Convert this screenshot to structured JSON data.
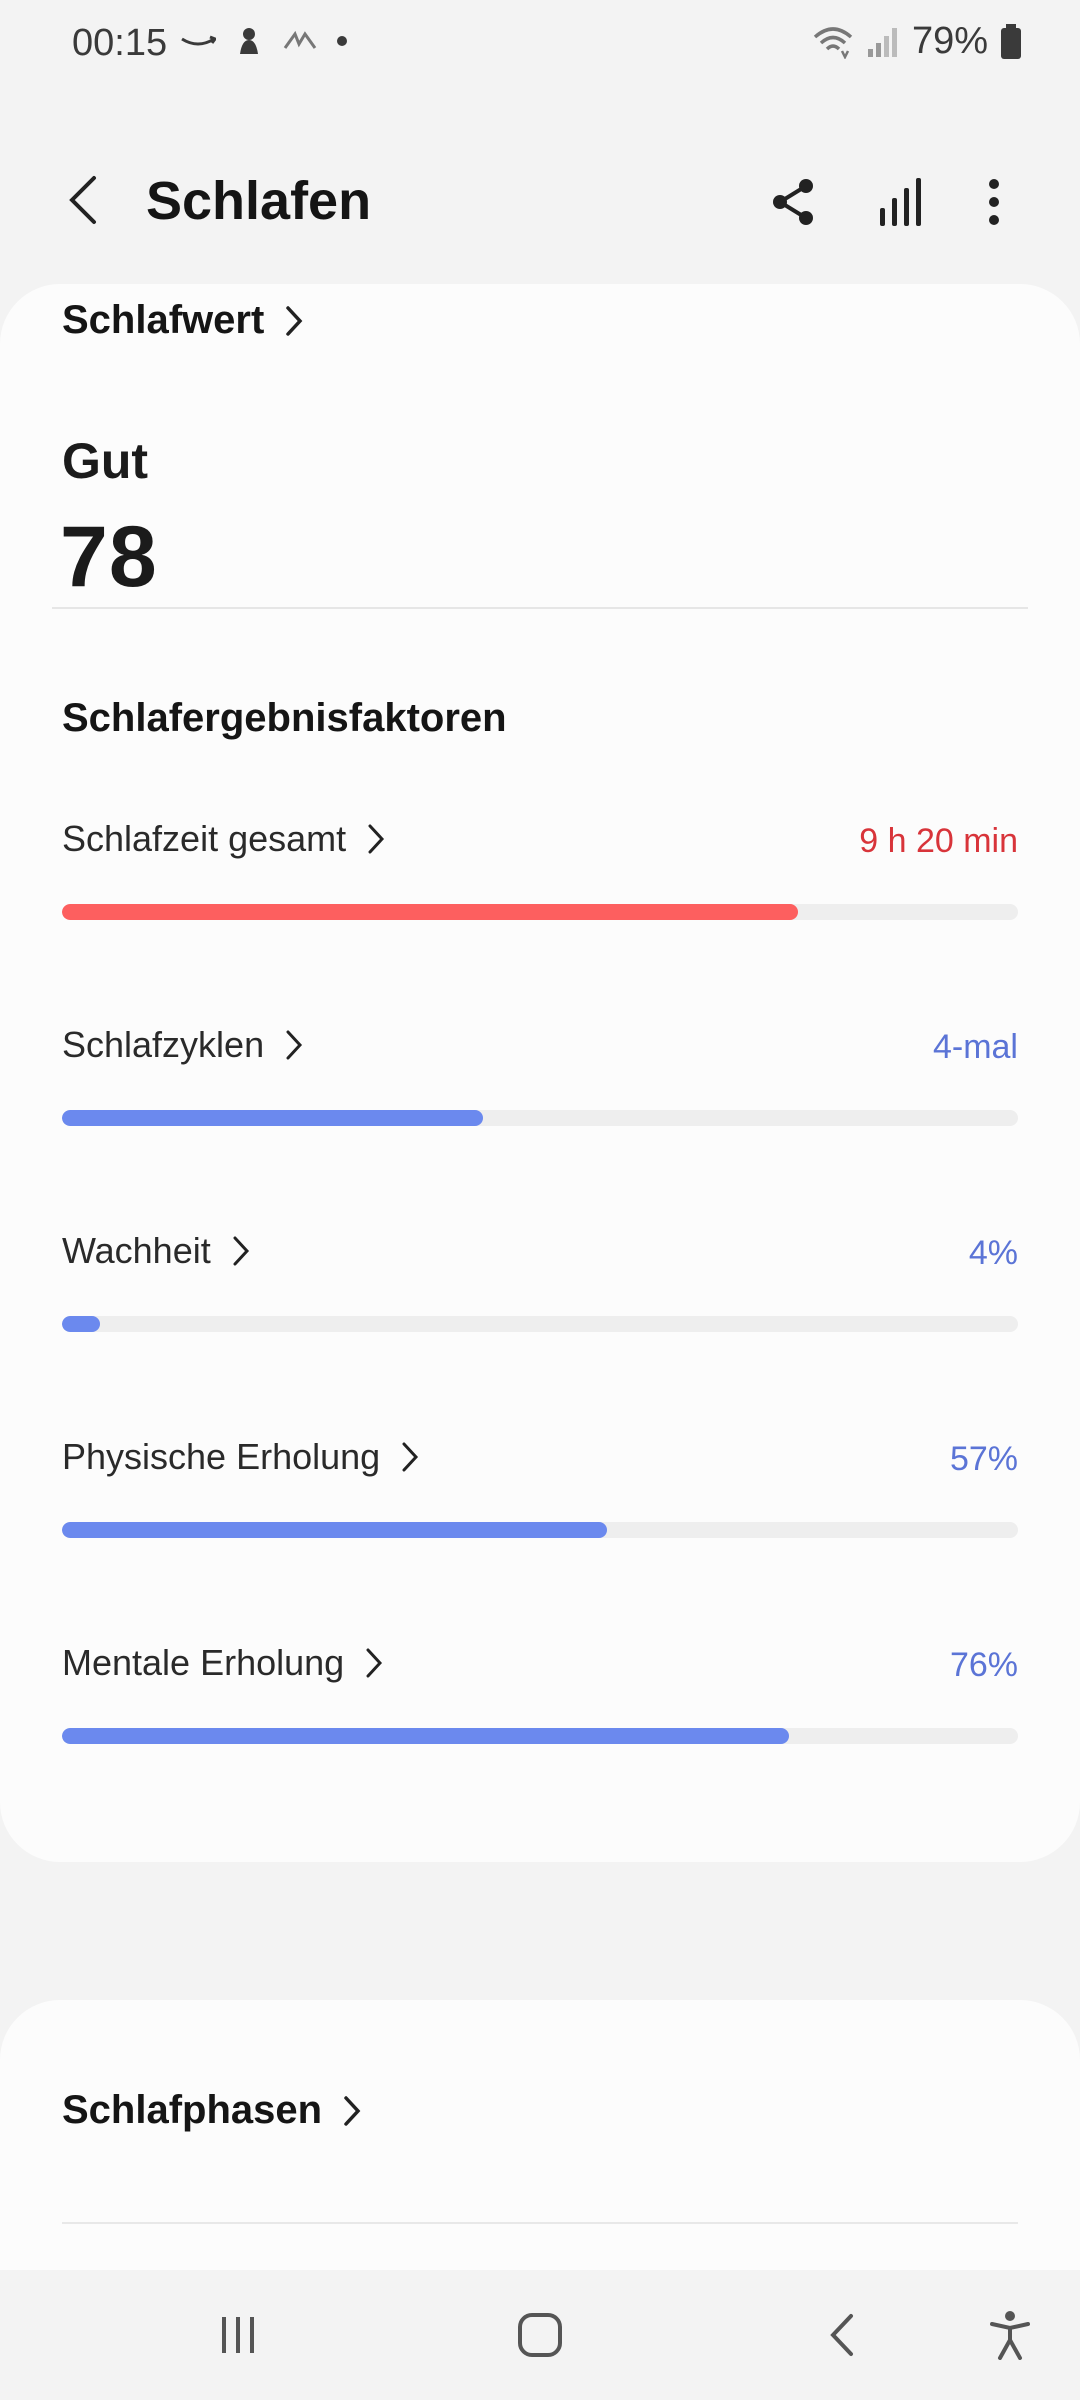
{
  "status_bar": {
    "time": "00:15",
    "battery": "79%"
  },
  "header": {
    "title": "Schlafen"
  },
  "score_card": {
    "link_label": "Schlafwert",
    "rating": "Gut",
    "score": "78",
    "factors_title": "Schlafergebnisfaktoren",
    "factors": [
      {
        "label": "Schlafzeit gesamt",
        "value": "9 h 20 min",
        "fraction": 0.77,
        "color": "#fd5f5f",
        "value_color": "#d8343a"
      },
      {
        "label": "Schlafzyklen",
        "value": "4-mal",
        "fraction": 0.44,
        "color": "#6b89ee",
        "value_color": "#5b74d6"
      },
      {
        "label": "Wachheit",
        "value": "4%",
        "fraction": 0.04,
        "color": "#6b89ee",
        "value_color": "#5b74d6"
      },
      {
        "label": "Physische Erholung",
        "value": "57%",
        "fraction": 0.57,
        "color": "#6b89ee",
        "value_color": "#5b74d6"
      },
      {
        "label": "Mentale Erholung",
        "value": "76%",
        "fraction": 0.76,
        "color": "#6b89ee",
        "value_color": "#5b74d6"
      }
    ]
  },
  "phases_card": {
    "link_label": "Schlafphasen"
  },
  "icons": {
    "back": "back-arrow-icon",
    "share": "share-icon",
    "stats": "signal-bars-icon",
    "more": "more-vert-icon",
    "nav_recent": "recent-apps-icon",
    "nav_home": "home-icon",
    "nav_back": "back-icon",
    "accessibility": "accessibility-icon"
  }
}
